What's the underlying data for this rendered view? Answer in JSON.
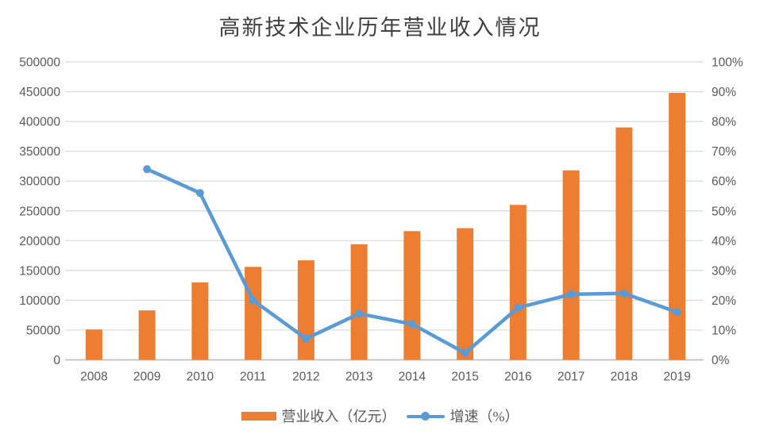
{
  "title": "高新技术企业历年营业收入情况",
  "colors": {
    "bar": "#ED7D31",
    "line": "#5B9BD5",
    "gridline": "#D9D9D9",
    "axis_line": "#C0C0C0",
    "axis_text": "#595959",
    "title_text": "#404040",
    "background": "#FFFFFF"
  },
  "legend": [
    {
      "label": "营业收入（亿元）",
      "type": "bar"
    },
    {
      "label": "增速（%）",
      "type": "line"
    }
  ],
  "chart_data": {
    "type": "bar+line",
    "title": "高新技术企业历年营业收入情况",
    "categories": [
      "2008",
      "2009",
      "2010",
      "2011",
      "2012",
      "2013",
      "2014",
      "2015",
      "2016",
      "2017",
      "2018",
      "2019"
    ],
    "series": [
      {
        "name": "营业收入（亿元）",
        "type": "bar",
        "axis": "left",
        "color": "#ED7D31",
        "values": [
          51000,
          83000,
          130000,
          156000,
          167000,
          194000,
          216000,
          221000,
          260000,
          318000,
          390000,
          448000
        ]
      },
      {
        "name": "增速（%）",
        "type": "line",
        "axis": "right",
        "color": "#5B9BD5",
        "values": [
          null,
          64,
          56,
          20,
          7.1,
          15.5,
          12,
          2.3,
          17.5,
          22,
          22.3,
          16
        ]
      }
    ],
    "axes": {
      "left": {
        "min": 0,
        "max": 500000,
        "step": 50000,
        "tick_labels": [
          "0",
          "50000",
          "100000",
          "150000",
          "200000",
          "250000",
          "300000",
          "350000",
          "400000",
          "450000",
          "500000"
        ]
      },
      "right": {
        "min": 0,
        "max": 100,
        "step": 10,
        "tick_labels": [
          "0%",
          "10%",
          "20%",
          "30%",
          "40%",
          "50%",
          "60%",
          "70%",
          "80%",
          "90%",
          "100%"
        ]
      }
    },
    "grid": true,
    "legend_position": "bottom"
  }
}
